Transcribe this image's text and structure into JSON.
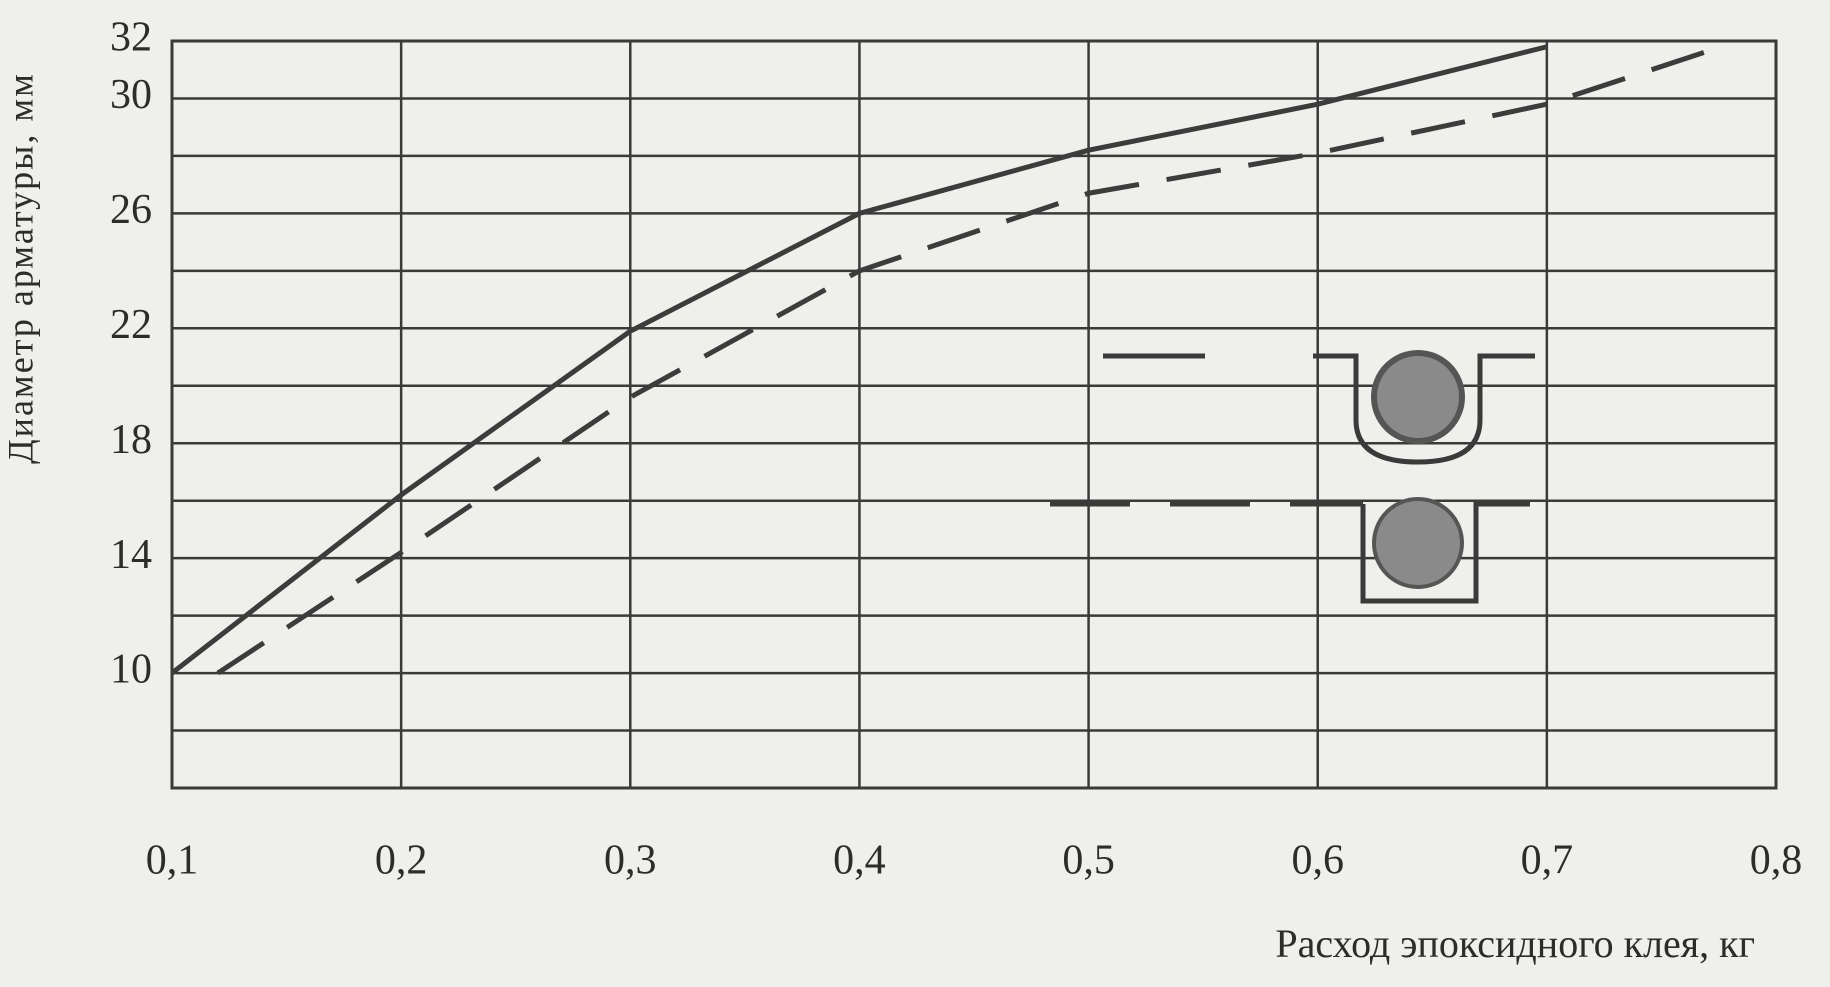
{
  "chart_data": {
    "type": "line",
    "y_label": "Диаметр арматуры, мм",
    "x_label": "Расход эпоксидного клея, кг",
    "xlim": [
      0.1,
      0.8
    ],
    "ylim": [
      6,
      32
    ],
    "xticks": [
      {
        "value": 0.1,
        "label": "0,1"
      },
      {
        "value": 0.2,
        "label": "0,2"
      },
      {
        "value": 0.3,
        "label": "0,3"
      },
      {
        "value": 0.4,
        "label": "0,4"
      },
      {
        "value": 0.5,
        "label": "0,5"
      },
      {
        "value": 0.6,
        "label": "0,6"
      },
      {
        "value": 0.7,
        "label": "0,7"
      },
      {
        "value": 0.8,
        "label": "0,8"
      }
    ],
    "yticks": [
      10,
      14,
      18,
      22,
      26,
      30,
      32
    ],
    "ygrid": [
      6,
      8,
      10,
      12,
      14,
      16,
      18,
      20,
      22,
      24,
      26,
      28,
      30,
      32
    ],
    "grid": true,
    "series": [
      {
        "color": "#3c3c3c",
        "line_style": "solid",
        "x": [
          0.1,
          0.2,
          0.3,
          0.4,
          0.5,
          0.6,
          0.7
        ],
        "values": [
          10,
          16.2,
          21.9,
          26,
          28.2,
          29.8,
          31.8
        ]
      },
      {
        "color": "#3c3c3c",
        "line_style": "dashed",
        "x": [
          0.12,
          0.2,
          0.3,
          0.4,
          0.5,
          0.6,
          0.7,
          0.78
        ],
        "values": [
          10,
          14.2,
          19.6,
          24,
          26.7,
          28.1,
          29.8,
          31.9
        ]
      }
    ]
  }
}
